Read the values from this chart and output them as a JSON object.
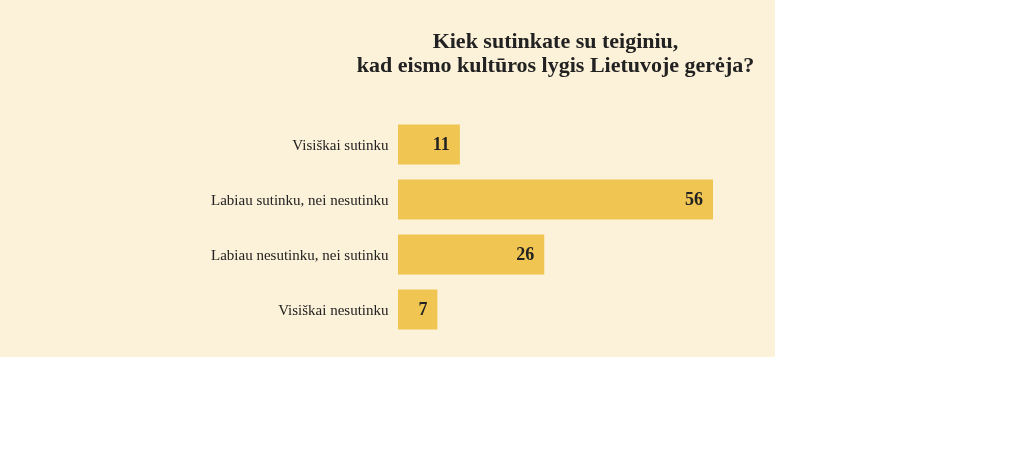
{
  "chart_data": {
    "type": "bar",
    "orientation": "horizontal",
    "title": "Kiek sutinkate su teiginiu,\nkad eismo kultūros lygis Lietuvoje gerėja?",
    "categories": [
      "Visiškai sutinku",
      "Labiau sutinku, nei nesutinku",
      "Labiau nesutinku, nei sutinku",
      "Visiškai nesutinku"
    ],
    "values": [
      11,
      56,
      26,
      7
    ],
    "color": "#f0c552",
    "data_labels": true,
    "grid": false
  }
}
